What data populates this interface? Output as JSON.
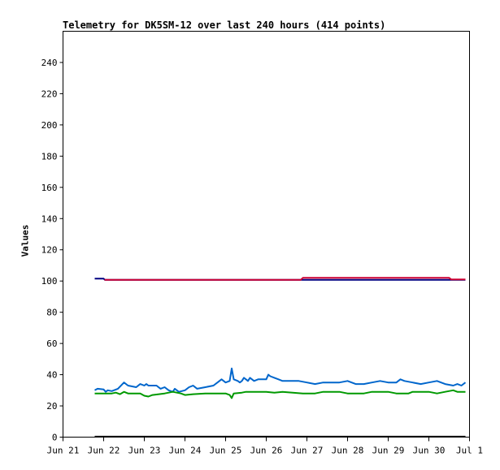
{
  "chart_data": {
    "type": "line",
    "title": "Telemetry for DK5SM-12 over last 240 hours (414 points)",
    "xlabel": "",
    "ylabel": "Values",
    "x_ticks": [
      "Jun 21",
      "Jun 22",
      "Jun 23",
      "Jun 24",
      "Jun 25",
      "Jun 26",
      "Jun 27",
      "Jun 28",
      "Jun 29",
      "Jun 30",
      "Jul 1"
    ],
    "y_ticks": [
      0,
      20,
      40,
      60,
      80,
      100,
      120,
      140,
      160,
      180,
      200,
      220,
      240
    ],
    "xlim_days": [
      0,
      10
    ],
    "ylim": [
      0,
      260
    ],
    "grid": false,
    "legend": "none",
    "series": [
      {
        "color": "#000080",
        "points": [
          [
            0.78,
            101.5
          ],
          [
            1.0,
            101.5
          ],
          [
            1.03,
            100.8
          ],
          [
            9.9,
            100.8
          ]
        ]
      },
      {
        "color": "#cc0033",
        "points": [
          [
            1.02,
            100.8
          ],
          [
            5.85,
            100.8
          ],
          [
            5.9,
            102
          ],
          [
            9.5,
            102
          ],
          [
            9.55,
            101
          ],
          [
            9.9,
            101
          ]
        ]
      },
      {
        "color": "#0066cc",
        "points": [
          [
            0.78,
            30
          ],
          [
            0.85,
            31
          ],
          [
            1.0,
            30.5
          ],
          [
            1.05,
            29
          ],
          [
            1.1,
            30
          ],
          [
            1.2,
            29.5
          ],
          [
            1.35,
            31
          ],
          [
            1.5,
            35
          ],
          [
            1.6,
            33
          ],
          [
            1.8,
            32
          ],
          [
            1.9,
            34
          ],
          [
            2.0,
            33
          ],
          [
            2.05,
            34
          ],
          [
            2.1,
            33
          ],
          [
            2.3,
            33
          ],
          [
            2.4,
            31
          ],
          [
            2.5,
            32
          ],
          [
            2.6,
            30
          ],
          [
            2.7,
            29
          ],
          [
            2.75,
            31
          ],
          [
            2.85,
            29
          ],
          [
            3.0,
            30
          ],
          [
            3.1,
            32
          ],
          [
            3.2,
            33
          ],
          [
            3.3,
            31
          ],
          [
            3.5,
            32
          ],
          [
            3.7,
            33
          ],
          [
            3.8,
            35
          ],
          [
            3.9,
            37
          ],
          [
            4.0,
            35
          ],
          [
            4.1,
            36
          ],
          [
            4.15,
            44
          ],
          [
            4.2,
            37
          ],
          [
            4.3,
            36
          ],
          [
            4.35,
            35
          ],
          [
            4.4,
            36
          ],
          [
            4.45,
            38
          ],
          [
            4.5,
            37
          ],
          [
            4.55,
            36
          ],
          [
            4.6,
            38
          ],
          [
            4.7,
            36
          ],
          [
            4.8,
            37
          ],
          [
            5.0,
            37
          ],
          [
            5.05,
            40
          ],
          [
            5.1,
            39
          ],
          [
            5.2,
            38
          ],
          [
            5.3,
            37
          ],
          [
            5.4,
            36
          ],
          [
            5.6,
            36
          ],
          [
            5.8,
            36
          ],
          [
            6.0,
            35
          ],
          [
            6.2,
            34
          ],
          [
            6.4,
            35
          ],
          [
            6.6,
            35
          ],
          [
            6.8,
            35
          ],
          [
            7.0,
            36
          ],
          [
            7.2,
            34
          ],
          [
            7.4,
            34
          ],
          [
            7.6,
            35
          ],
          [
            7.8,
            36
          ],
          [
            8.0,
            35
          ],
          [
            8.2,
            35
          ],
          [
            8.3,
            37
          ],
          [
            8.4,
            36
          ],
          [
            8.6,
            35
          ],
          [
            8.8,
            34
          ],
          [
            9.0,
            35
          ],
          [
            9.2,
            36
          ],
          [
            9.4,
            34
          ],
          [
            9.6,
            33
          ],
          [
            9.7,
            34
          ],
          [
            9.8,
            33
          ],
          [
            9.9,
            35
          ]
        ]
      },
      {
        "color": "#009900",
        "points": [
          [
            0.78,
            28
          ],
          [
            1.2,
            28
          ],
          [
            1.3,
            28.5
          ],
          [
            1.4,
            27.5
          ],
          [
            1.5,
            29
          ],
          [
            1.6,
            28
          ],
          [
            1.9,
            28
          ],
          [
            2.0,
            26.5
          ],
          [
            2.1,
            26
          ],
          [
            2.2,
            27
          ],
          [
            2.5,
            28
          ],
          [
            2.7,
            29
          ],
          [
            2.9,
            28
          ],
          [
            3.0,
            27
          ],
          [
            3.2,
            27.5
          ],
          [
            3.5,
            28
          ],
          [
            4.0,
            28
          ],
          [
            4.1,
            27
          ],
          [
            4.15,
            25
          ],
          [
            4.2,
            28
          ],
          [
            4.4,
            28.5
          ],
          [
            4.5,
            29
          ],
          [
            5.0,
            29
          ],
          [
            5.2,
            28.5
          ],
          [
            5.4,
            29
          ],
          [
            5.9,
            28
          ],
          [
            6.2,
            28
          ],
          [
            6.4,
            29
          ],
          [
            6.8,
            29
          ],
          [
            7.0,
            28
          ],
          [
            7.4,
            28
          ],
          [
            7.6,
            29
          ],
          [
            8.0,
            29
          ],
          [
            8.2,
            28
          ],
          [
            8.5,
            28
          ],
          [
            8.6,
            29
          ],
          [
            9.0,
            29
          ],
          [
            9.2,
            28
          ],
          [
            9.4,
            29
          ],
          [
            9.6,
            30
          ],
          [
            9.7,
            29
          ],
          [
            9.9,
            29
          ]
        ]
      },
      {
        "color": "#000000",
        "points": [
          [
            0.78,
            0.3
          ],
          [
            9.9,
            0.3
          ]
        ]
      }
    ]
  }
}
